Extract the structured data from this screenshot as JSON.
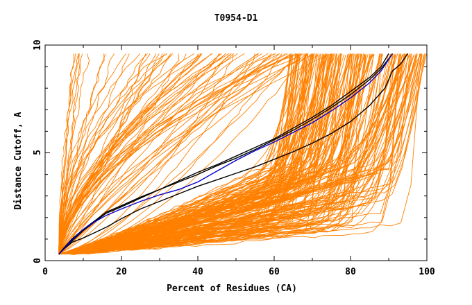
{
  "chart_data": {
    "type": "line",
    "title": "T0954-D1",
    "xlabel": "Percent of Residues (CA)",
    "ylabel": "Distance Cutoff, A",
    "xlim": [
      0,
      100
    ],
    "ylim": [
      0,
      10
    ],
    "x_ticks": [
      "0",
      "20",
      "40",
      "60",
      "80",
      "100"
    ],
    "y_ticks": [
      "0",
      "5",
      "10"
    ],
    "grid": false,
    "legend": "none",
    "colors": {
      "bundle": "#ff8000",
      "black": "#000000",
      "blue": "#0000cc"
    },
    "highlight_series": [
      {
        "color": "black",
        "points": [
          [
            3.6,
            0.3
          ],
          [
            5,
            0.6
          ],
          [
            7,
            0.9
          ],
          [
            10,
            1.4
          ],
          [
            13,
            1.8
          ],
          [
            16,
            2.2
          ],
          [
            20,
            2.5
          ],
          [
            25,
            2.9
          ],
          [
            30,
            3.3
          ],
          [
            35,
            3.65
          ],
          [
            40,
            4.0
          ],
          [
            45,
            4.4
          ],
          [
            50,
            4.75
          ],
          [
            55,
            5.15
          ],
          [
            60,
            5.6
          ],
          [
            65,
            6.05
          ],
          [
            70,
            6.55
          ],
          [
            75,
            7.1
          ],
          [
            80,
            7.7
          ],
          [
            85,
            8.4
          ],
          [
            88,
            8.9
          ],
          [
            91,
            9.6
          ]
        ]
      },
      {
        "color": "black",
        "points": [
          [
            3.6,
            0.3
          ],
          [
            5,
            0.6
          ],
          [
            7,
            1.0
          ],
          [
            10,
            1.45
          ],
          [
            13,
            1.85
          ],
          [
            16,
            2.25
          ],
          [
            20,
            2.55
          ],
          [
            25,
            2.95
          ],
          [
            30,
            3.3
          ],
          [
            35,
            3.7
          ],
          [
            40,
            4.1
          ],
          [
            45,
            4.45
          ],
          [
            50,
            4.85
          ],
          [
            55,
            5.25
          ],
          [
            60,
            5.65
          ],
          [
            65,
            6.15
          ],
          [
            70,
            6.65
          ],
          [
            75,
            7.2
          ],
          [
            80,
            7.85
          ],
          [
            85,
            8.5
          ],
          [
            88,
            9.0
          ],
          [
            90,
            9.6
          ]
        ]
      },
      {
        "color": "black",
        "points": [
          [
            3.6,
            0.3
          ],
          [
            5,
            0.55
          ],
          [
            7,
            0.85
          ],
          [
            10,
            1.05
          ],
          [
            13,
            1.3
          ],
          [
            16,
            1.55
          ],
          [
            20,
            1.95
          ],
          [
            25,
            2.4
          ],
          [
            30,
            2.75
          ],
          [
            35,
            3.1
          ],
          [
            40,
            3.45
          ],
          [
            45,
            3.75
          ],
          [
            50,
            4.05
          ],
          [
            55,
            4.35
          ],
          [
            60,
            4.7
          ],
          [
            65,
            5.05
          ],
          [
            70,
            5.45
          ],
          [
            75,
            5.9
          ],
          [
            80,
            6.45
          ],
          [
            85,
            7.2
          ],
          [
            89,
            8.0
          ],
          [
            91,
            8.8
          ],
          [
            93,
            9.1
          ],
          [
            95,
            9.6
          ]
        ]
      },
      {
        "color": "blue",
        "points": [
          [
            3.6,
            0.3
          ],
          [
            5,
            0.55
          ],
          [
            7,
            0.95
          ],
          [
            10,
            1.45
          ],
          [
            13,
            1.8
          ],
          [
            16,
            2.1
          ],
          [
            20,
            2.4
          ],
          [
            25,
            2.75
          ],
          [
            30,
            3.05
          ],
          [
            35,
            3.3
          ],
          [
            40,
            3.65
          ],
          [
            45,
            4.15
          ],
          [
            50,
            4.65
          ],
          [
            55,
            5.1
          ],
          [
            60,
            5.5
          ],
          [
            65,
            5.95
          ],
          [
            70,
            6.4
          ],
          [
            75,
            6.95
          ],
          [
            80,
            7.55
          ],
          [
            85,
            8.25
          ],
          [
            88,
            8.8
          ],
          [
            91,
            9.6
          ]
        ]
      }
    ]
  }
}
